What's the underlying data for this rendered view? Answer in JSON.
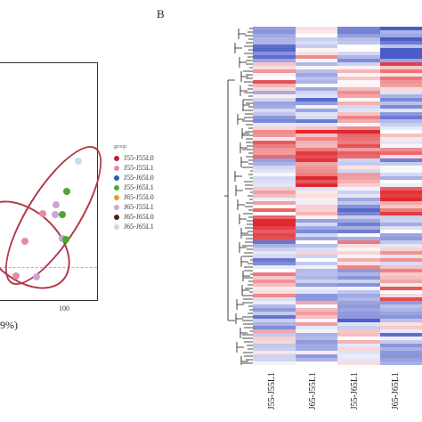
{
  "panel_b_label": "B",
  "pca": {
    "x_tick_label": "100",
    "axis_label_fragment": "9%)",
    "legend_title": "group",
    "legend": [
      {
        "label": "J55-J55L0",
        "color": "#b5252b"
      },
      {
        "label": "J55-J55L1",
        "color": "#e58aa4"
      },
      {
        "label": "J55-J65L0",
        "color": "#2c5aa0"
      },
      {
        "label": "J55-J65L1",
        "color": "#4aa832"
      },
      {
        "label": "J65-J55L0",
        "color": "#e0a020"
      },
      {
        "label": "J65-J55L1",
        "color": "#c8a8d8"
      },
      {
        "label": "J65-J65L0",
        "color": "#5a1a1a"
      },
      {
        "label": "J65-J65L1",
        "color": "#c8dcea"
      }
    ],
    "points": [
      {
        "group": "J55-J55L1",
        "color": "#e58aa4"
      },
      {
        "group": "J55-J55L1",
        "color": "#e58aa4"
      },
      {
        "group": "J65-J55L1",
        "color": "#c8a8d8"
      },
      {
        "group": "J55-J65L1",
        "color": "#4aa832"
      },
      {
        "group": "J55-J65L1",
        "color": "#4aa832"
      },
      {
        "group": "J65-J55L1",
        "color": "#c8a8d8"
      },
      {
        "group": "J65-J55L1",
        "color": "#c8a8d8"
      },
      {
        "group": "J65-J65L1",
        "color": "#c8dcea"
      },
      {
        "group": "J55-J55L1",
        "color": "#e58aa4"
      },
      {
        "group": "J55-J65L1",
        "color": "#4aa832"
      },
      {
        "group": "J65-J55L1",
        "color": "#c8a8d8"
      }
    ]
  },
  "heatmap": {
    "columns": [
      "J55-J55L1",
      "J65-J55L1",
      "J55-J65L1",
      "J65-J65L1"
    ],
    "colors": {
      "high": "#e0282e",
      "mid": "#ffffff",
      "low": "#4a5cc8"
    }
  }
}
